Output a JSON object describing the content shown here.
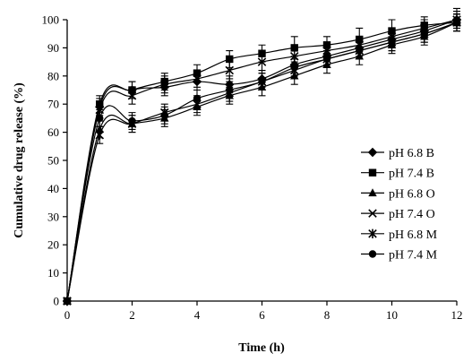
{
  "chart_data": {
    "type": "line",
    "title": "",
    "xlabel": "Time (h)",
    "ylabel": "Cumulative drug release (%)",
    "xlim": [
      0,
      12
    ],
    "ylim": [
      0,
      100
    ],
    "xticks": [
      0,
      2,
      4,
      6,
      8,
      10,
      12
    ],
    "yticks": [
      0,
      10,
      20,
      30,
      40,
      50,
      60,
      70,
      80,
      90,
      100
    ],
    "grid": false,
    "legend_position": "right",
    "line_color": "#000000",
    "x": [
      0,
      1,
      2,
      3,
      4,
      5,
      6,
      7,
      8,
      9,
      10,
      11,
      12
    ],
    "series": [
      {
        "name": "pH 6.8 B",
        "marker": "diamond",
        "values": [
          0,
          69,
          75,
          76,
          78,
          77,
          79,
          84,
          87,
          90,
          93,
          96,
          100
        ],
        "errors": [
          0,
          3,
          3,
          3,
          3,
          3,
          3,
          3,
          3,
          3,
          4,
          4,
          4
        ]
      },
      {
        "name": "pH 7.4 B",
        "marker": "square",
        "values": [
          0,
          70,
          75,
          78,
          81,
          86,
          88,
          90,
          91,
          93,
          96,
          98,
          99
        ],
        "errors": [
          0,
          3,
          3,
          3,
          3,
          3,
          3,
          4,
          3,
          4,
          4,
          3,
          3
        ]
      },
      {
        "name": "pH 6.8 O",
        "marker": "triangle",
        "values": [
          0,
          61,
          63,
          65,
          69,
          73,
          76,
          80,
          84,
          87,
          91,
          94,
          99
        ],
        "errors": [
          0,
          3,
          3,
          3,
          3,
          3,
          3,
          3,
          3,
          3,
          3,
          3,
          3
        ]
      },
      {
        "name": "pH 7.4 O",
        "marker": "x",
        "values": [
          0,
          68,
          73,
          77,
          79,
          82,
          85,
          87,
          89,
          91,
          94,
          97,
          100
        ],
        "errors": [
          0,
          3,
          3,
          3,
          3,
          3,
          3,
          3,
          3,
          3,
          3,
          3,
          3
        ]
      },
      {
        "name": "pH 6.8 M",
        "marker": "star",
        "values": [
          0,
          59,
          63,
          67,
          70,
          74,
          78,
          82,
          86,
          89,
          92,
          95,
          99
        ],
        "errors": [
          0,
          3,
          3,
          3,
          3,
          3,
          3,
          3,
          3,
          3,
          3,
          3,
          3
        ]
      },
      {
        "name": "pH 7.4 M",
        "marker": "circle",
        "values": [
          0,
          65,
          64,
          66,
          72,
          75,
          78,
          83,
          86,
          89,
          92,
          95,
          99
        ],
        "errors": [
          0,
          3,
          3,
          3,
          3,
          3,
          3,
          3,
          3,
          3,
          3,
          3,
          3
        ]
      }
    ]
  }
}
